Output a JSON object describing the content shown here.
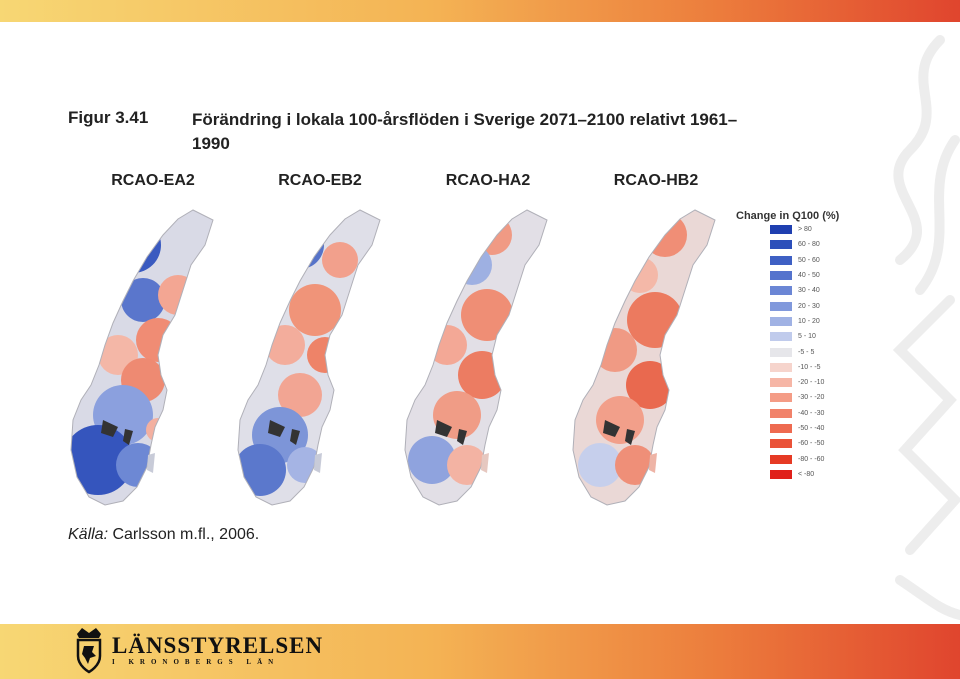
{
  "figure": {
    "label": "Figur 3.41",
    "title": "Förändring i lokala 100-årsflöden i Sverige 2071–2100 relativt 1961–1990"
  },
  "panels": [
    {
      "title": "RCAO-EA2",
      "tint": "blue-dominant"
    },
    {
      "title": "RCAO-EB2",
      "tint": "mixed-red"
    },
    {
      "title": "RCAO-HA2",
      "tint": "mostly-red"
    },
    {
      "title": "RCAO-HB2",
      "tint": "red-dominant"
    }
  ],
  "legend": {
    "title": "Change in Q100 (%)",
    "items": [
      {
        "label": "> 80",
        "color": "#1f3fb0"
      },
      {
        "label": "60 - 80",
        "color": "#2c4fba"
      },
      {
        "label": "50 - 60",
        "color": "#3e60c4"
      },
      {
        "label": "40 - 50",
        "color": "#5473cd"
      },
      {
        "label": "30 - 40",
        "color": "#6b86d5"
      },
      {
        "label": "20 - 30",
        "color": "#8199dc"
      },
      {
        "label": "10 - 20",
        "color": "#a0b2e4"
      },
      {
        "label": "5 - 10",
        "color": "#c0cbec"
      },
      {
        "label": "-5 - 5",
        "color": "#e6e6ea"
      },
      {
        "label": "-10 - -5",
        "color": "#f6d4cc"
      },
      {
        "label": "-20 - -10",
        "color": "#f6b6a6"
      },
      {
        "label": "-30 - -20",
        "color": "#f49c86"
      },
      {
        "label": "-40 - -30",
        "color": "#f1826a"
      },
      {
        "label": "-50 - -40",
        "color": "#ee6a50"
      },
      {
        "label": "-60 - -50",
        "color": "#ea5238"
      },
      {
        "label": "-80 - -60",
        "color": "#e63a24"
      },
      {
        "label": "< -80",
        "color": "#e0201a"
      }
    ]
  },
  "source": {
    "prefix": "Källa:",
    "text": " Carlsson m.fl., 2006."
  },
  "logo": {
    "name": "LÄNSSTYRELSEN",
    "subtitle": "I KRONOBERGS LÄN"
  }
}
